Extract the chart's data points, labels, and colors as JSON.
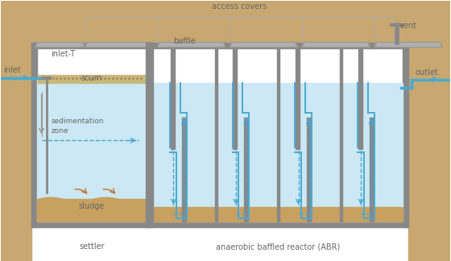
{
  "bg_color": "#ffffff",
  "soil_color": "#c8a870",
  "wall_color": "#888888",
  "wall_dark": "#666666",
  "water_color": "#cce8f4",
  "scum_color": "#c8b87a",
  "scum_light": "#d4c98a",
  "sludge_color": "#c8a060",
  "blue_flow": "#4aaad0",
  "blue_dashed": "#44a8d4",
  "text_color": "#666666",
  "label_inlet": "inlet",
  "label_inlet_t": "inlet-T",
  "label_scum": "scum",
  "label_sed": "sedimentation\nzone",
  "label_sludge": "sludge",
  "label_baffle": "baffle",
  "label_access": "access covers",
  "label_vent": "vent",
  "label_outlet": "outlet",
  "label_settler": "settler",
  "label_abr": "anaerobic baffled reactor (ABR)"
}
